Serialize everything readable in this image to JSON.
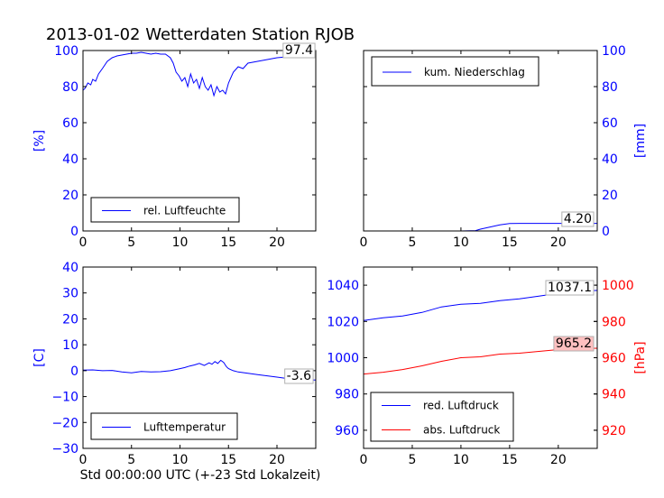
{
  "figure": {
    "title": "2013-01-02 Wetterdaten Station RJOB",
    "xlabel": "Std 00:00:00 UTC (+-23 Std Lokalzeit)"
  },
  "colors": {
    "blue": "#0000ff",
    "red": "#ff0000",
    "black": "#000000",
    "pink_box": "#ffc0c0"
  },
  "chart_data": [
    {
      "type": "line",
      "panel": "top-left",
      "ylabel": "[%]",
      "xlim": [
        0,
        24
      ],
      "ylim": [
        0,
        100
      ],
      "xticks": [
        "0",
        "5",
        "10",
        "15",
        "20"
      ],
      "yticks": [
        "0",
        "20",
        "40",
        "60",
        "80",
        "100"
      ],
      "ytick_color": "#0000ff",
      "legend": {
        "position": "bottom-left",
        "entries": [
          {
            "label": "rel. Luftfeuchte",
            "color": "#0000ff"
          }
        ]
      },
      "annotation": "97.4",
      "series": [
        {
          "color": "#0000ff",
          "x": [
            0,
            0.2,
            0.5,
            0.8,
            1.0,
            1.3,
            1.6,
            2.0,
            2.5,
            3.0,
            3.5,
            4.0,
            4.5,
            5.0,
            5.5,
            6.0,
            6.5,
            7.0,
            7.5,
            8.0,
            8.5,
            9.0,
            9.3,
            9.6,
            9.9,
            10.2,
            10.5,
            10.8,
            11.1,
            11.4,
            11.7,
            12.0,
            12.3,
            12.6,
            12.9,
            13.2,
            13.5,
            13.8,
            14.1,
            14.4,
            14.7,
            15.0,
            15.5,
            16.0,
            16.5,
            17.0,
            18.0,
            19.0,
            20.0,
            21.0,
            22.0,
            23.0,
            24.0
          ],
          "y": [
            78,
            79,
            82,
            81,
            84,
            83,
            87,
            90,
            94,
            96,
            97,
            97.5,
            98,
            98.5,
            98.5,
            99,
            98.5,
            98,
            98.5,
            98,
            98,
            96,
            93,
            88,
            86,
            83,
            85,
            80,
            87,
            82,
            84,
            79,
            85,
            80,
            78,
            81,
            75,
            80,
            77,
            78,
            76,
            82,
            88,
            91,
            90,
            93,
            94,
            95,
            96,
            96.5,
            97,
            97.3,
            97.4
          ]
        }
      ]
    },
    {
      "type": "line",
      "panel": "top-right",
      "ylabel": "[mm]",
      "xlim": [
        0,
        24
      ],
      "ylim": [
        0,
        100
      ],
      "xticks": [
        "0",
        "5",
        "10",
        "15",
        "20"
      ],
      "yticks": [
        "0",
        "20",
        "40",
        "60",
        "80",
        "100"
      ],
      "ytick_color": "#0000ff",
      "legend": {
        "position": "top-left",
        "entries": [
          {
            "label": "kum. Niederschlag",
            "color": "#0000ff"
          }
        ]
      },
      "annotation": "4.20",
      "series": [
        {
          "color": "#0000ff",
          "x": [
            0,
            5,
            10,
            11.5,
            12,
            13,
            14,
            15,
            16,
            18,
            20,
            22,
            24
          ],
          "y": [
            0,
            0,
            0,
            0.2,
            1.0,
            2.2,
            3.4,
            4.1,
            4.2,
            4.2,
            4.2,
            4.2,
            4.2
          ]
        }
      ]
    },
    {
      "type": "line",
      "panel": "bottom-left",
      "ylabel": "[C]",
      "xlim": [
        0,
        24
      ],
      "ylim": [
        -30,
        40
      ],
      "xticks": [
        "0",
        "5",
        "10",
        "15",
        "20"
      ],
      "yticks": [
        "−30",
        "−20",
        "−10",
        "0",
        "10",
        "20",
        "30",
        "40"
      ],
      "ytick_color": "#0000ff",
      "legend": {
        "position": "bottom-left",
        "entries": [
          {
            "label": "Lufttemperatur",
            "color": "#0000ff"
          }
        ]
      },
      "annotation": "-3.6",
      "series": [
        {
          "color": "#0000ff",
          "x": [
            0,
            1,
            2,
            3,
            4,
            5,
            6,
            7,
            8,
            9,
            10,
            10.5,
            11,
            11.5,
            12,
            12.5,
            13,
            13.3,
            13.6,
            13.9,
            14.2,
            14.5,
            14.8,
            15.0,
            15.5,
            16,
            17,
            18,
            19,
            20,
            21,
            22,
            23,
            24
          ],
          "y": [
            0.2,
            0.3,
            0.0,
            0.1,
            -0.5,
            -0.8,
            -0.3,
            -0.5,
            -0.4,
            0.0,
            0.8,
            1.2,
            1.8,
            2.2,
            2.8,
            2.0,
            3.0,
            2.5,
            3.5,
            2.8,
            4.0,
            3.2,
            1.5,
            0.8,
            0.0,
            -0.5,
            -1.0,
            -1.5,
            -2.0,
            -2.5,
            -3.0,
            -3.3,
            -3.5,
            -3.6
          ]
        }
      ]
    },
    {
      "type": "line",
      "panel": "bottom-right",
      "ylabel": "[hPa]",
      "xlim": [
        0,
        24
      ],
      "ylim": [
        950,
        1050
      ],
      "y2lim": [
        910,
        1010
      ],
      "xticks": [
        "0",
        "5",
        "10",
        "15",
        "20"
      ],
      "yticks": [
        "960",
        "980",
        "1000",
        "1020",
        "1040"
      ],
      "ytick_color": "#0000ff",
      "y2ticks": [
        "920",
        "940",
        "960",
        "980",
        "1000"
      ],
      "y2tick_color": "#ff0000",
      "legend": {
        "position": "bottom-left",
        "entries": [
          {
            "label": "red. Luftdruck",
            "color": "#0000ff"
          },
          {
            "label": "abs. Luftdruck",
            "color": "#ff0000"
          }
        ]
      },
      "annotations": [
        "1037.1",
        "965.2"
      ],
      "series": [
        {
          "color": "#0000ff",
          "axis": "left",
          "x": [
            0,
            2,
            4,
            6,
            8,
            10,
            12,
            14,
            16,
            18,
            20,
            22,
            24
          ],
          "y": [
            1020.5,
            1022,
            1023,
            1025,
            1028,
            1029.5,
            1030,
            1031.5,
            1032.5,
            1034,
            1035.5,
            1036.5,
            1037.1
          ]
        },
        {
          "color": "#ff0000",
          "axis": "right",
          "x": [
            0,
            2,
            4,
            6,
            8,
            10,
            12,
            14,
            16,
            18,
            20,
            22,
            24
          ],
          "y": [
            951,
            952,
            953.5,
            955.5,
            958,
            960,
            960.5,
            962,
            962.5,
            963.5,
            964.5,
            965,
            965.2
          ]
        }
      ]
    }
  ]
}
